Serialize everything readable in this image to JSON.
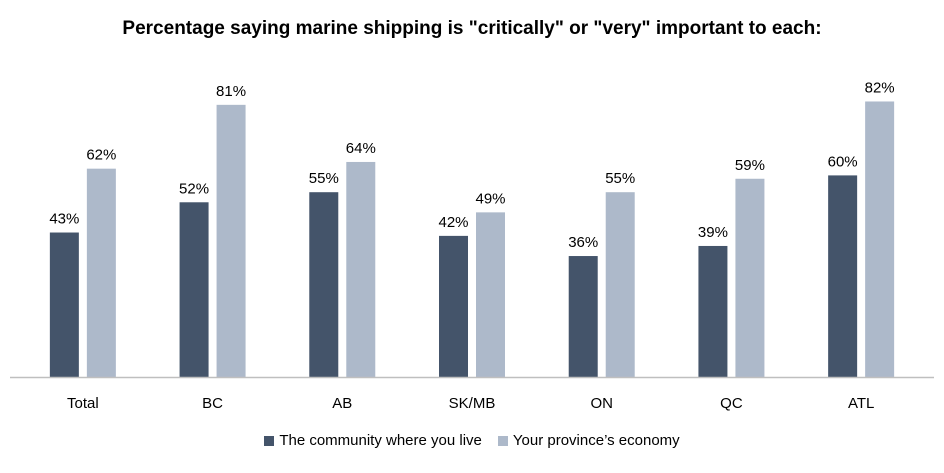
{
  "chart_data": {
    "type": "bar",
    "title": "Percentage saying marine shipping is \"critically\" or \"very\" important to each:",
    "categories": [
      "Total",
      "BC",
      "AB",
      "SK/MB",
      "ON",
      "QC",
      "ATL"
    ],
    "series": [
      {
        "name": "The community where you live",
        "color": "#44546A",
        "values": [
          43,
          52,
          55,
          42,
          36,
          39,
          60
        ],
        "labels": [
          "43%",
          "52%",
          "55%",
          "42%",
          "36%",
          "39%",
          "60%"
        ]
      },
      {
        "name": "Your province’s economy",
        "color": "#ADB9CA",
        "values": [
          62,
          81,
          64,
          49,
          55,
          59,
          82
        ],
        "labels": [
          "62%",
          "81%",
          "64%",
          "49%",
          "55%",
          "59%",
          "82%"
        ]
      }
    ],
    "ylim": [
      0,
      100
    ],
    "grid": false,
    "legend": "bottom"
  }
}
